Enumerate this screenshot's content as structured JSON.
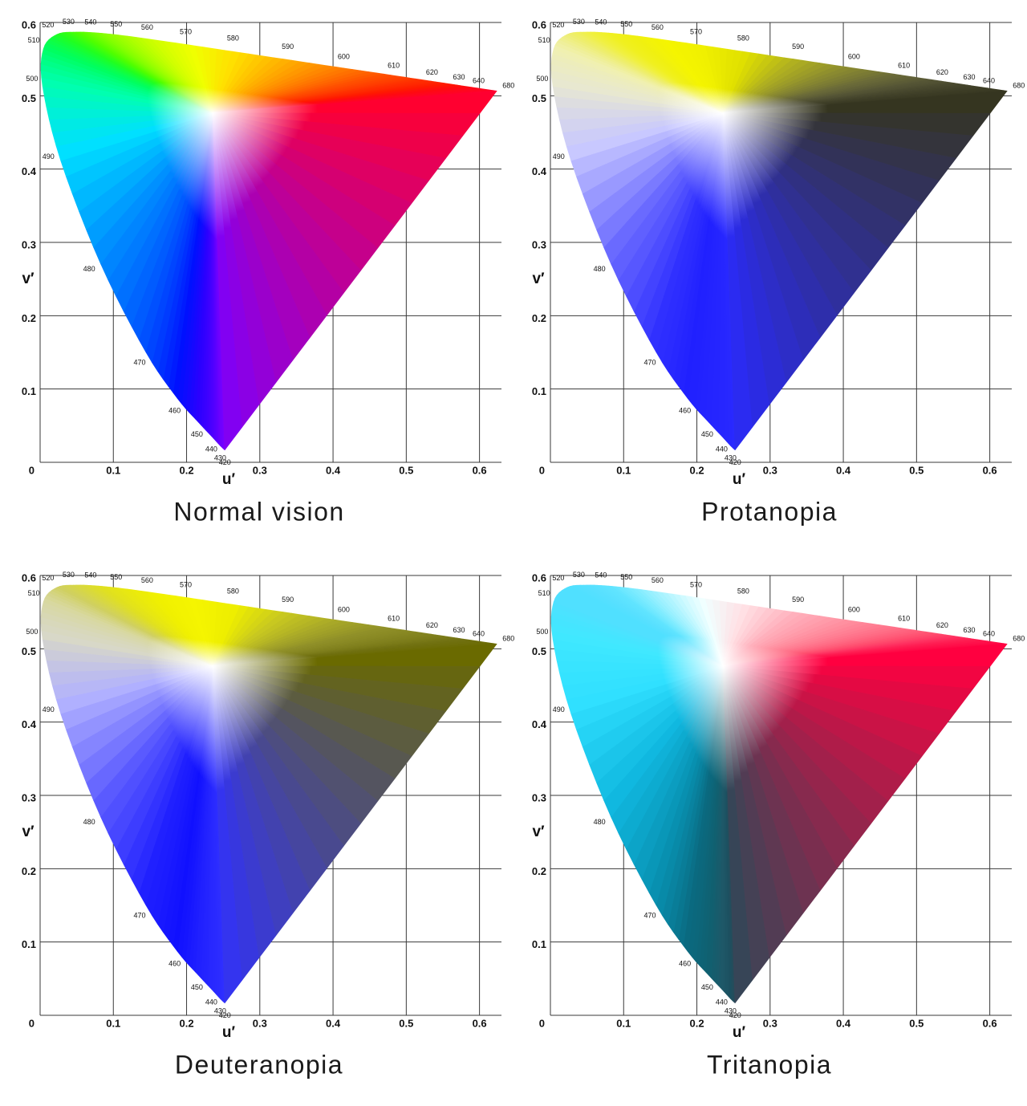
{
  "chart_data": [
    {
      "type": "chromaticity",
      "title": "Normal vision",
      "xlabel": "u′",
      "ylabel": "v′",
      "xlim": [
        0,
        0.63
      ],
      "ylim": [
        0,
        0.6
      ],
      "xticks": [
        0,
        0.1,
        0.2,
        0.3,
        0.4,
        0.5,
        0.6
      ],
      "yticks": [
        0.1,
        0.2,
        0.3,
        0.4,
        0.5,
        0.6
      ],
      "grid": true,
      "center_color": "#ffffff",
      "locus": {
        "wavelengths": [
          420,
          430,
          440,
          450,
          460,
          470,
          480,
          490,
          500,
          510,
          520,
          530,
          540,
          550,
          560,
          570,
          580,
          590,
          600,
          610,
          620,
          630,
          640,
          680
        ],
        "u": [
          0.2522,
          0.2461,
          0.2347,
          0.2161,
          0.1877,
          0.1441,
          0.0828,
          0.0282,
          0.0035,
          0.0046,
          0.0231,
          0.0501,
          0.0792,
          0.1127,
          0.1531,
          0.2026,
          0.2623,
          0.3315,
          0.4035,
          0.4692,
          0.5203,
          0.5565,
          0.583,
          0.6234
        ],
        "v": [
          0.0169,
          0.0226,
          0.035,
          0.0549,
          0.0871,
          0.151,
          0.2708,
          0.4117,
          0.5131,
          0.5638,
          0.5837,
          0.5868,
          0.5856,
          0.5821,
          0.5766,
          0.5694,
          0.5604,
          0.5501,
          0.5393,
          0.5296,
          0.5219,
          0.5165,
          0.5125,
          0.5065
        ],
        "colors": [
          "#7a00ff",
          "#6a00ff",
          "#4a00ff",
          "#2a00ff",
          "#0010ff",
          "#0050ff",
          "#0090ff",
          "#00e0ff",
          "#00ffb0",
          "#00ff60",
          "#20ff20",
          "#50ff00",
          "#80ff00",
          "#a8ff00",
          "#d0ff00",
          "#f0ff00",
          "#ffe000",
          "#ffb000",
          "#ff8000",
          "#ff5000",
          "#ff3000",
          "#ff1a00",
          "#ff0a10",
          "#ff0030"
        ]
      }
    },
    {
      "type": "chromaticity",
      "title": "Protanopia",
      "xlabel": "u′",
      "ylabel": "v′",
      "xlim": [
        0,
        0.63
      ],
      "ylim": [
        0,
        0.6
      ],
      "xticks": [
        0,
        0.1,
        0.2,
        0.3,
        0.4,
        0.5,
        0.6
      ],
      "yticks": [
        0.1,
        0.2,
        0.3,
        0.4,
        0.5,
        0.6
      ],
      "grid": true,
      "center_color": "#ffffff",
      "locus": {
        "wavelengths": [
          420,
          430,
          440,
          450,
          460,
          470,
          480,
          490,
          500,
          510,
          520,
          530,
          540,
          550,
          560,
          570,
          580,
          590,
          600,
          610,
          620,
          630,
          640,
          680
        ],
        "u": [
          0.2522,
          0.2461,
          0.2347,
          0.2161,
          0.1877,
          0.1441,
          0.0828,
          0.0282,
          0.0035,
          0.0046,
          0.0231,
          0.0501,
          0.0792,
          0.1127,
          0.1531,
          0.2026,
          0.2623,
          0.3315,
          0.4035,
          0.4692,
          0.5203,
          0.5565,
          0.583,
          0.6234
        ],
        "v": [
          0.0169,
          0.0226,
          0.035,
          0.0549,
          0.0871,
          0.151,
          0.2708,
          0.4117,
          0.5131,
          0.5638,
          0.5837,
          0.5868,
          0.5856,
          0.5821,
          0.5766,
          0.5694,
          0.5604,
          0.5501,
          0.5393,
          0.5296,
          0.5219,
          0.5165,
          0.5125,
          0.5065
        ],
        "colors": [
          "#2a2aff",
          "#2828ff",
          "#2626ff",
          "#2424ff",
          "#2020ff",
          "#3030ff",
          "#6a6aff",
          "#c8c8ff",
          "#e8e8d0",
          "#f0f0b0",
          "#eeee70",
          "#f0f040",
          "#f0f020",
          "#f0f010",
          "#f5f500",
          "#f0f000",
          "#e0e000",
          "#b0b020",
          "#8a8a30",
          "#6a6a38",
          "#555535",
          "#48482e",
          "#404028",
          "#353520"
        ]
      }
    },
    {
      "type": "chromaticity",
      "title": "Deuteranopia",
      "xlabel": "u′",
      "ylabel": "v′",
      "xlim": [
        0,
        0.63
      ],
      "ylim": [
        0,
        0.6
      ],
      "xticks": [
        0,
        0.1,
        0.2,
        0.3,
        0.4,
        0.5,
        0.6
      ],
      "yticks": [
        0.1,
        0.2,
        0.3,
        0.4,
        0.5,
        0.6
      ],
      "grid": true,
      "center_color": "#ffffff",
      "locus": {
        "wavelengths": [
          420,
          430,
          440,
          450,
          460,
          470,
          480,
          490,
          500,
          510,
          520,
          530,
          540,
          550,
          560,
          570,
          580,
          590,
          600,
          610,
          620,
          630,
          640,
          680
        ],
        "u": [
          0.2522,
          0.2461,
          0.2347,
          0.2161,
          0.1877,
          0.1441,
          0.0828,
          0.0282,
          0.0035,
          0.0046,
          0.0231,
          0.0501,
          0.0792,
          0.1127,
          0.1531,
          0.2026,
          0.2623,
          0.3315,
          0.4035,
          0.4692,
          0.5203,
          0.5565,
          0.583,
          0.6234
        ],
        "v": [
          0.0169,
          0.0226,
          0.035,
          0.0549,
          0.0871,
          0.151,
          0.2708,
          0.4117,
          0.5131,
          0.5638,
          0.5837,
          0.5868,
          0.5856,
          0.5821,
          0.5766,
          0.5694,
          0.5604,
          0.5501,
          0.5393,
          0.5296,
          0.5219,
          0.5165,
          0.5125,
          0.5065
        ],
        "colors": [
          "#3030ff",
          "#2c2cff",
          "#2828ff",
          "#2020ff",
          "#1010ff",
          "#2020ff",
          "#5a5aff",
          "#b0b0ff",
          "#d8d8c8",
          "#d8d8a0",
          "#d0d060",
          "#d8d840",
          "#e0e020",
          "#e8e810",
          "#f0f000",
          "#f5f500",
          "#eeee00",
          "#c8c820",
          "#a8a828",
          "#909028",
          "#848420",
          "#7a7a18",
          "#707010",
          "#6a6a00"
        ]
      }
    },
    {
      "type": "chromaticity",
      "title": "Tritanopia",
      "xlabel": "u′",
      "ylabel": "v′",
      "xlim": [
        0,
        0.63
      ],
      "ylim": [
        0,
        0.6
      ],
      "xticks": [
        0,
        0.1,
        0.2,
        0.3,
        0.4,
        0.5,
        0.6
      ],
      "yticks": [
        0.1,
        0.2,
        0.3,
        0.4,
        0.5,
        0.6
      ],
      "grid": true,
      "center_color": "#ffffff",
      "locus": {
        "wavelengths": [
          420,
          430,
          440,
          450,
          460,
          470,
          480,
          490,
          500,
          510,
          520,
          530,
          540,
          550,
          560,
          570,
          580,
          590,
          600,
          610,
          620,
          630,
          640,
          680
        ],
        "u": [
          0.2522,
          0.2461,
          0.2347,
          0.2161,
          0.1877,
          0.1441,
          0.0828,
          0.0282,
          0.0035,
          0.0046,
          0.0231,
          0.0501,
          0.0792,
          0.1127,
          0.1531,
          0.2026,
          0.2623,
          0.3315,
          0.4035,
          0.4692,
          0.5203,
          0.5565,
          0.583,
          0.6234
        ],
        "v": [
          0.0169,
          0.0226,
          0.035,
          0.0549,
          0.0871,
          0.151,
          0.2708,
          0.4117,
          0.5131,
          0.5638,
          0.5837,
          0.5868,
          0.5856,
          0.5821,
          0.5766,
          0.5694,
          0.5604,
          0.5501,
          0.5393,
          0.5296,
          0.5219,
          0.5165,
          0.5125,
          0.5065
        ],
        "colors": [
          "#2a4a58",
          "#1c5060",
          "#1e5868",
          "#106070",
          "#0a6a80",
          "#0890b0",
          "#10b8e0",
          "#30e0ff",
          "#40e8ff",
          "#50e0ff",
          "#50e0ff",
          "#58e0ff",
          "#60e4ff",
          "#80ecff",
          "#b0f4ff",
          "#f0ffff",
          "#ffe0e4",
          "#ffb0bc",
          "#ff90a0",
          "#ff7088",
          "#ff5070",
          "#ff3060",
          "#ff1a50",
          "#ff0040"
        ]
      }
    }
  ]
}
